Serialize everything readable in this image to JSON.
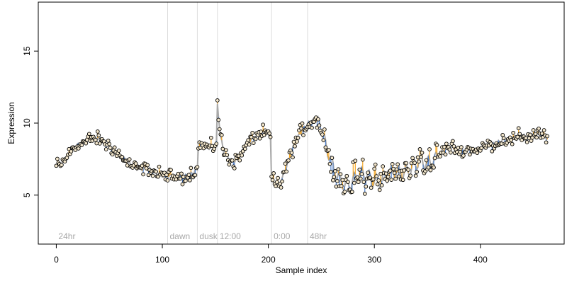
{
  "chart_data": {
    "type": "scatter",
    "title": "",
    "xlabel": "Sample index",
    "ylabel": "Expression",
    "xlim": [
      -17,
      479
    ],
    "ylim": [
      1.6,
      18.4
    ],
    "x_ticks": [
      0,
      100,
      200,
      300,
      400
    ],
    "y_ticks": [
      5,
      10,
      15
    ],
    "grid": false,
    "colors": {
      "fit_line": "#a9a9a9",
      "residual_above": "#f5a623",
      "residual_below": "#4f7fc8",
      "point_edge": "#000000",
      "point_fill": "#f2e6cc",
      "phase_line": "#dcdcdc",
      "phase_text": "#a8a8a8"
    },
    "phase_markers": [
      {
        "x": 0,
        "label": "24hr",
        "line": false
      },
      {
        "x": 105,
        "label": "dawn",
        "line": true
      },
      {
        "x": 133,
        "label": "dusk",
        "line": true
      },
      {
        "x": 152,
        "label": "12:00",
        "line": true
      },
      {
        "x": 203,
        "label": "0:00",
        "line": true
      },
      {
        "x": 237,
        "label": "48hr",
        "line": true
      }
    ],
    "anchor_curve": [
      [
        0,
        7.0
      ],
      [
        6,
        7.2
      ],
      [
        12,
        7.9
      ],
      [
        18,
        8.4
      ],
      [
        25,
        8.6
      ],
      [
        32,
        8.9
      ],
      [
        40,
        8.9
      ],
      [
        48,
        8.5
      ],
      [
        55,
        8.1
      ],
      [
        62,
        7.6
      ],
      [
        70,
        7.1
      ],
      [
        78,
        6.8
      ],
      [
        85,
        6.9
      ],
      [
        92,
        6.6
      ],
      [
        100,
        6.4
      ],
      [
        108,
        6.3
      ],
      [
        115,
        6.2
      ],
      [
        122,
        6.3
      ],
      [
        128,
        6.5
      ],
      [
        133,
        6.8
      ],
      [
        134,
        8.5
      ],
      [
        140,
        8.4
      ],
      [
        146,
        8.3
      ],
      [
        151,
        8.6
      ],
      [
        152,
        11.3
      ],
      [
        155,
        9.0
      ],
      [
        158,
        8.0
      ],
      [
        162,
        7.6
      ],
      [
        166,
        7.3
      ],
      [
        172,
        7.6
      ],
      [
        178,
        8.3
      ],
      [
        184,
        8.9
      ],
      [
        190,
        9.2
      ],
      [
        196,
        9.3
      ],
      [
        202,
        9.1
      ],
      [
        203,
        6.0
      ],
      [
        207,
        5.7
      ],
      [
        212,
        5.9
      ],
      [
        218,
        7.2
      ],
      [
        224,
        8.4
      ],
      [
        230,
        9.3
      ],
      [
        236,
        9.9
      ],
      [
        242,
        10.1
      ],
      [
        247,
        10.3
      ],
      [
        252,
        8.9
      ],
      [
        257,
        7.9
      ],
      [
        262,
        6.7
      ],
      [
        268,
        6.0
      ],
      [
        274,
        5.6
      ],
      [
        280,
        6.0
      ],
      [
        286,
        6.5
      ],
      [
        292,
        6.4
      ],
      [
        298,
        6.1
      ],
      [
        304,
        5.9
      ],
      [
        310,
        6.2
      ],
      [
        318,
        6.7
      ],
      [
        326,
        6.5
      ],
      [
        334,
        6.8
      ],
      [
        342,
        7.4
      ],
      [
        350,
        7.2
      ],
      [
        358,
        7.5
      ],
      [
        366,
        8.2
      ],
      [
        374,
        8.3
      ],
      [
        382,
        8.0
      ],
      [
        390,
        8.2
      ],
      [
        398,
        8.1
      ],
      [
        406,
        8.5
      ],
      [
        414,
        8.5
      ],
      [
        422,
        8.9
      ],
      [
        430,
        8.8
      ],
      [
        438,
        9.1
      ],
      [
        446,
        9.0
      ],
      [
        454,
        9.4
      ],
      [
        460,
        9.0
      ],
      [
        463,
        9.0
      ]
    ],
    "n_points": 464
  }
}
